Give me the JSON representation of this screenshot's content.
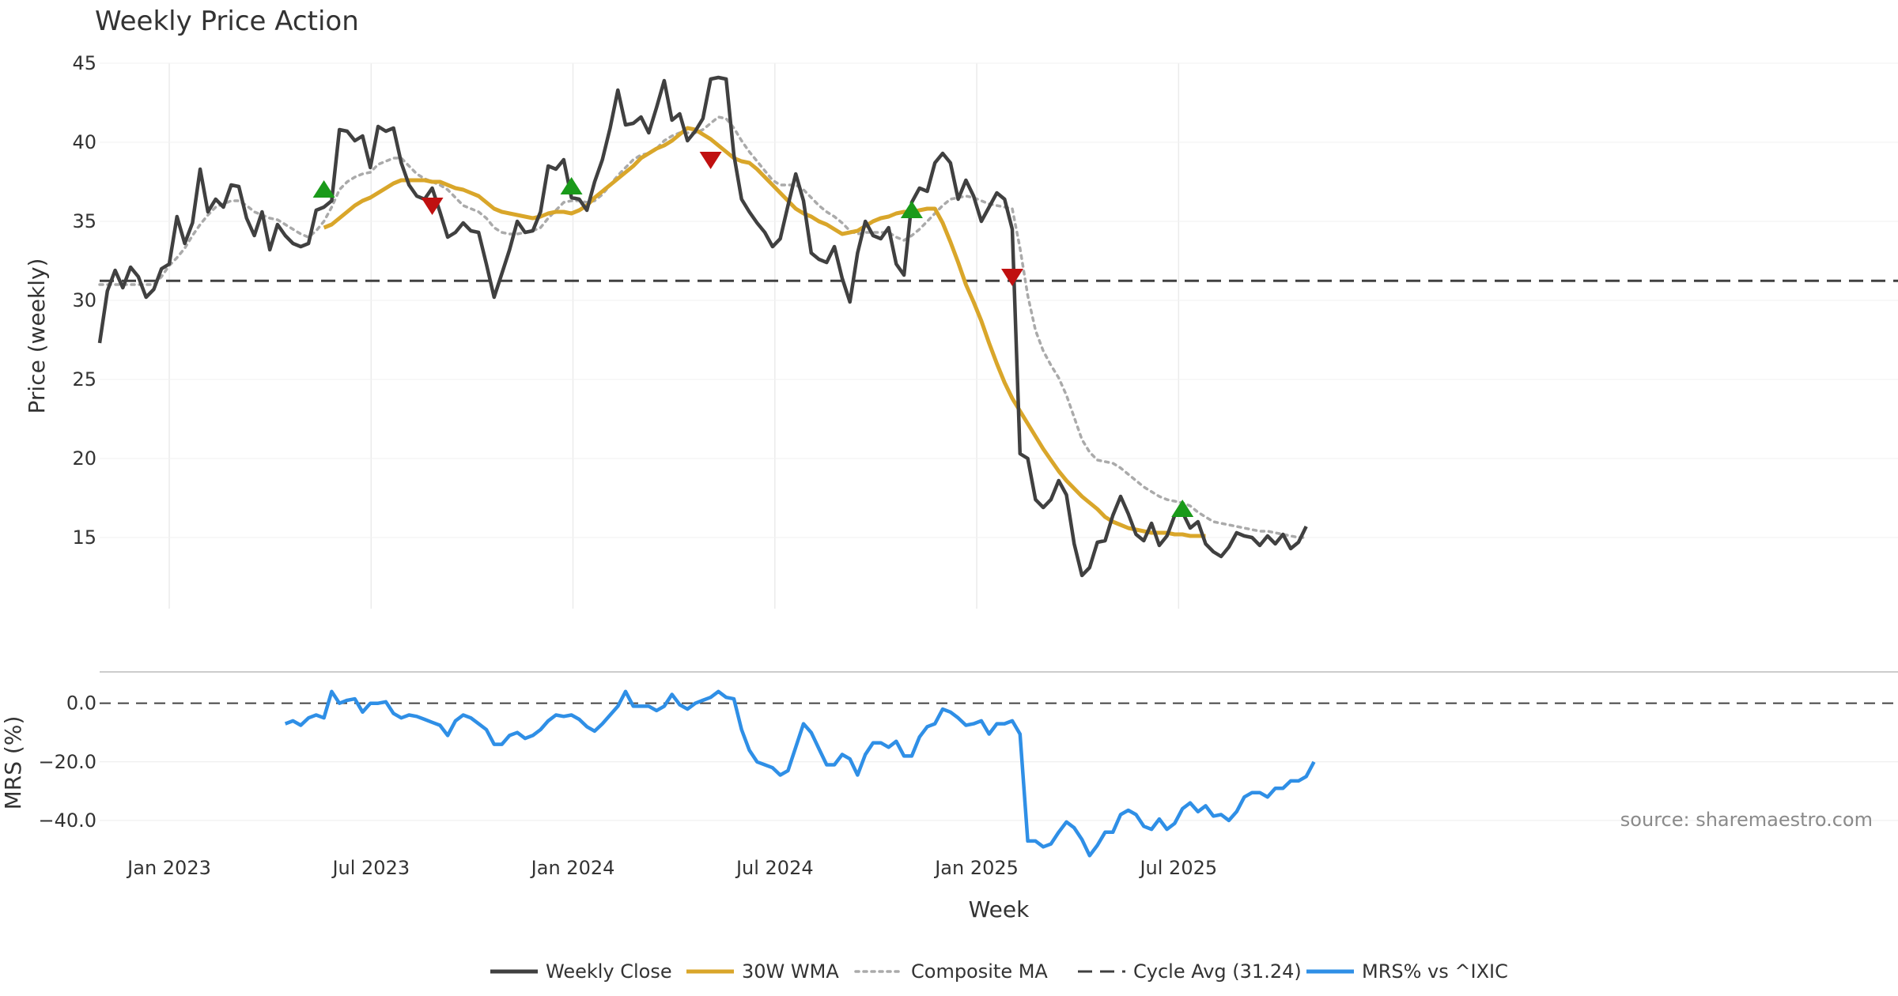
{
  "chart_data": {
    "type": "line",
    "title": "Weekly Price Action",
    "xlabel": "Week",
    "source_label": "source: sharemaestro.com",
    "x_ticks": [
      "Jan 2023",
      "Jul 2023",
      "Jan 2024",
      "Jul 2024",
      "Jan 2025",
      "Jul 2025"
    ],
    "colors": {
      "close": "#404040",
      "wma": "#d9a62a",
      "composite": "#aaaaaa",
      "cycle": "#404040",
      "mrs": "#2f8fe6",
      "buy": "#1a9a1a",
      "sell": "#c01010"
    },
    "price_panel": {
      "ylabel": "Price (weekly)",
      "ylim": [
        10.5,
        46
      ],
      "y_ticks": [
        15,
        20,
        25,
        30,
        35,
        40,
        45
      ],
      "series": [
        {
          "name": "Weekly Close",
          "start_week": 0,
          "values": [
            27.3,
            30.6,
            31.9,
            30.8,
            32.1,
            31.5,
            30.2,
            30.7,
            32.0,
            32.3,
            35.3,
            33.6,
            34.9,
            38.3,
            35.6,
            36.4,
            35.9,
            37.3,
            37.2,
            35.2,
            34.1,
            35.6,
            33.2,
            34.8,
            34.1,
            33.6,
            33.4,
            33.6,
            35.7,
            35.9,
            36.3,
            40.8,
            40.7,
            40.1,
            40.4,
            38.4,
            41.0,
            40.7,
            40.9,
            38.7,
            37.3,
            36.6,
            36.4,
            37.1,
            35.6,
            34.0,
            34.3,
            34.9,
            34.4,
            34.3,
            32.3,
            30.2,
            31.7,
            33.2,
            35.0,
            34.3,
            34.4,
            35.6,
            38.5,
            38.3,
            38.9,
            36.5,
            36.4,
            35.7,
            37.5,
            38.9,
            40.9,
            43.3,
            41.1,
            41.2,
            41.6,
            40.6,
            42.2,
            43.9,
            41.4,
            41.8,
            40.1,
            40.7,
            41.5,
            44.0,
            44.1,
            44.0,
            39.2,
            36.4,
            35.6,
            34.9,
            34.3,
            33.4,
            33.9,
            36.0,
            38.0,
            36.3,
            33.0,
            32.6,
            32.4,
            33.4,
            31.4,
            29.9,
            33.0,
            35.0,
            34.1,
            33.9,
            34.6,
            32.3,
            31.6,
            36.2,
            37.1,
            36.9,
            38.7,
            39.3,
            38.7,
            36.4,
            37.6,
            36.6,
            35.0,
            35.9,
            36.8,
            36.4,
            34.5,
            20.3,
            20.0,
            17.4,
            16.9,
            17.4,
            18.6,
            17.7,
            14.6,
            12.6,
            13.1,
            14.7,
            14.8,
            16.4,
            17.6,
            16.5,
            15.2,
            14.8,
            15.9,
            14.5,
            15.1,
            16.4,
            16.6,
            15.6,
            16.0,
            14.6,
            14.1,
            13.8,
            14.4,
            15.3,
            15.1,
            15.0,
            14.5,
            15.1,
            14.6,
            15.2,
            14.3,
            14.7,
            15.7
          ]
        },
        {
          "name": "30W WMA",
          "start_week": 29,
          "values": [
            34.6,
            34.8,
            35.2,
            35.6,
            36.0,
            36.3,
            36.5,
            36.8,
            37.1,
            37.4,
            37.6,
            37.6,
            37.6,
            37.6,
            37.5,
            37.5,
            37.3,
            37.1,
            37.0,
            36.8,
            36.6,
            36.2,
            35.8,
            35.6,
            35.5,
            35.4,
            35.3,
            35.2,
            35.3,
            35.5,
            35.6,
            35.6,
            35.5,
            35.7,
            36.0,
            36.5,
            36.9,
            37.3,
            37.7,
            38.1,
            38.5,
            39.0,
            39.3,
            39.6,
            39.8,
            40.1,
            40.5,
            40.9,
            40.8,
            40.5,
            40.2,
            39.8,
            39.4,
            39.0,
            38.8,
            38.7,
            38.3,
            37.8,
            37.3,
            36.8,
            36.3,
            35.8,
            35.5,
            35.3,
            35.0,
            34.8,
            34.5,
            34.2,
            34.3,
            34.4,
            34.7,
            35.0,
            35.2,
            35.3,
            35.5,
            35.6,
            35.6,
            35.7,
            35.8,
            35.8,
            34.9,
            33.7,
            32.4,
            31.0,
            29.9,
            28.7,
            27.3,
            26.0,
            24.8,
            23.8,
            23.0,
            22.2,
            21.4,
            20.6,
            19.9,
            19.2,
            18.6,
            18.1,
            17.6,
            17.2,
            16.8,
            16.3,
            16.0,
            15.8,
            15.6,
            15.5,
            15.4,
            15.3,
            15.3,
            15.3,
            15.2,
            15.2,
            15.1,
            15.1,
            15.1
          ]
        },
        {
          "name": "Composite MA",
          "start_week": 0,
          "values": [
            31.0,
            31.0,
            31.0,
            31.0,
            31.0,
            31.0,
            31.0,
            31.0,
            31.5,
            32.2,
            32.7,
            33.3,
            34.1,
            34.8,
            35.4,
            35.9,
            36.1,
            36.3,
            36.3,
            36.0,
            35.6,
            35.4,
            35.2,
            35.1,
            34.8,
            34.5,
            34.2,
            34.0,
            34.4,
            35.0,
            35.9,
            37.0,
            37.5,
            37.8,
            38.0,
            38.1,
            38.6,
            38.8,
            39.0,
            39.0,
            38.5,
            38.0,
            37.7,
            37.5,
            37.3,
            37.0,
            36.5,
            36.0,
            35.8,
            35.6,
            35.2,
            34.6,
            34.3,
            34.2,
            34.2,
            34.3,
            34.4,
            34.6,
            35.2,
            35.7,
            36.2,
            36.3,
            36.3,
            36.2,
            36.3,
            36.7,
            37.3,
            37.9,
            38.4,
            38.9,
            39.2,
            39.3,
            39.6,
            40.1,
            40.4,
            40.6,
            40.6,
            40.6,
            40.8,
            41.2,
            41.6,
            41.5,
            40.9,
            40.1,
            39.4,
            38.8,
            38.2,
            37.6,
            37.3,
            37.3,
            37.3,
            37.0,
            36.5,
            36.0,
            35.6,
            35.3,
            34.9,
            34.4,
            34.2,
            34.3,
            34.3,
            34.3,
            34.3,
            34.0,
            33.8,
            34.1,
            34.5,
            35.0,
            35.5,
            36.0,
            36.4,
            36.5,
            36.6,
            36.5,
            36.3,
            36.1,
            36.0,
            35.9,
            35.8,
            33.3,
            30.3,
            28.1,
            26.8,
            25.9,
            25.1,
            24.0,
            22.6,
            21.2,
            20.4,
            19.9,
            19.8,
            19.7,
            19.4,
            19.0,
            18.6,
            18.2,
            17.9,
            17.6,
            17.4,
            17.3,
            17.2,
            17.0,
            16.6,
            16.3,
            16.0,
            15.9,
            15.8,
            15.7,
            15.6,
            15.5,
            15.4,
            15.4,
            15.3,
            15.2,
            15.1,
            15.0,
            15.0
          ]
        },
        {
          "name": "Cycle Avg (31.24)",
          "constant": 31.24
        }
      ],
      "markers": [
        {
          "type": "buy",
          "week": 29,
          "value": 37.0
        },
        {
          "type": "sell",
          "week": 43,
          "value": 36.0
        },
        {
          "type": "buy",
          "week": 61,
          "value": 37.2
        },
        {
          "type": "sell",
          "week": 79,
          "value": 38.9
        },
        {
          "type": "buy",
          "week": 105,
          "value": 35.7
        },
        {
          "type": "sell",
          "week": 118,
          "value": 31.5
        },
        {
          "type": "buy",
          "week": 140,
          "value": 16.8
        }
      ]
    },
    "mrs_panel": {
      "ylabel": "MRS (%)",
      "ylim": [
        -50,
        8
      ],
      "y_ticks": [
        "0.0",
        "−20.0",
        "−40.0"
      ],
      "y_tick_values": [
        0,
        -20,
        -40
      ],
      "reference": 0,
      "series": [
        {
          "name": "MRS% vs ^IXIC",
          "start_week": 24,
          "values": [
            -7,
            -6,
            -7.5,
            -5,
            -4,
            -5,
            4,
            0,
            1,
            1.5,
            -3,
            0,
            0,
            0.5,
            -3.5,
            -5,
            -4,
            -4.5,
            -5.5,
            -6.5,
            -7.5,
            -11,
            -6,
            -4,
            -5,
            -7,
            -9,
            -14,
            -14,
            -11,
            -10,
            -12,
            -11,
            -9,
            -6,
            -4,
            -4.5,
            -4,
            -5.5,
            -8,
            -9.5,
            -7,
            -4,
            -1,
            4,
            -1,
            -1,
            -1,
            -2.5,
            -1,
            3,
            -0.5,
            -2,
            0,
            1,
            2,
            4,
            2,
            1.5,
            -9,
            -16,
            -20,
            -21,
            -22,
            -24.5,
            -23,
            -15,
            -7,
            -10,
            -15.5,
            -21,
            -21,
            -17.5,
            -19,
            -24.5,
            -17.5,
            -13.5,
            -13.5,
            -15,
            -13,
            -18,
            -18,
            -11.5,
            -8,
            -7,
            -2,
            -3,
            -5,
            -7.5,
            -7,
            -6,
            -10.5,
            -7,
            -7,
            -6,
            -10.5,
            -47,
            -47,
            -49,
            -48,
            -44,
            -40.5,
            -42.5,
            -46.5,
            -52,
            -48.5,
            -44,
            -44,
            -38,
            -36.5,
            -38,
            -42,
            -43,
            -39.5,
            -43,
            -41,
            -36,
            -34,
            -37,
            -35,
            -38.5,
            -38,
            -40,
            -37,
            -32,
            -30.5,
            -30.5,
            -32,
            -29,
            -29,
            -26.5,
            -26.5,
            -25,
            -20
          ]
        }
      ]
    },
    "legend": [
      {
        "label": "Weekly Close",
        "style": "solid",
        "color_key": "close"
      },
      {
        "label": "30W WMA",
        "style": "solid",
        "color_key": "wma"
      },
      {
        "label": "Composite MA",
        "style": "dotted",
        "color_key": "composite"
      },
      {
        "label": "Cycle Avg (31.24)",
        "style": "dashed",
        "color_key": "cycle"
      },
      {
        "label": "MRS% vs ^IXIC",
        "style": "solid",
        "color_key": "mrs"
      }
    ]
  }
}
